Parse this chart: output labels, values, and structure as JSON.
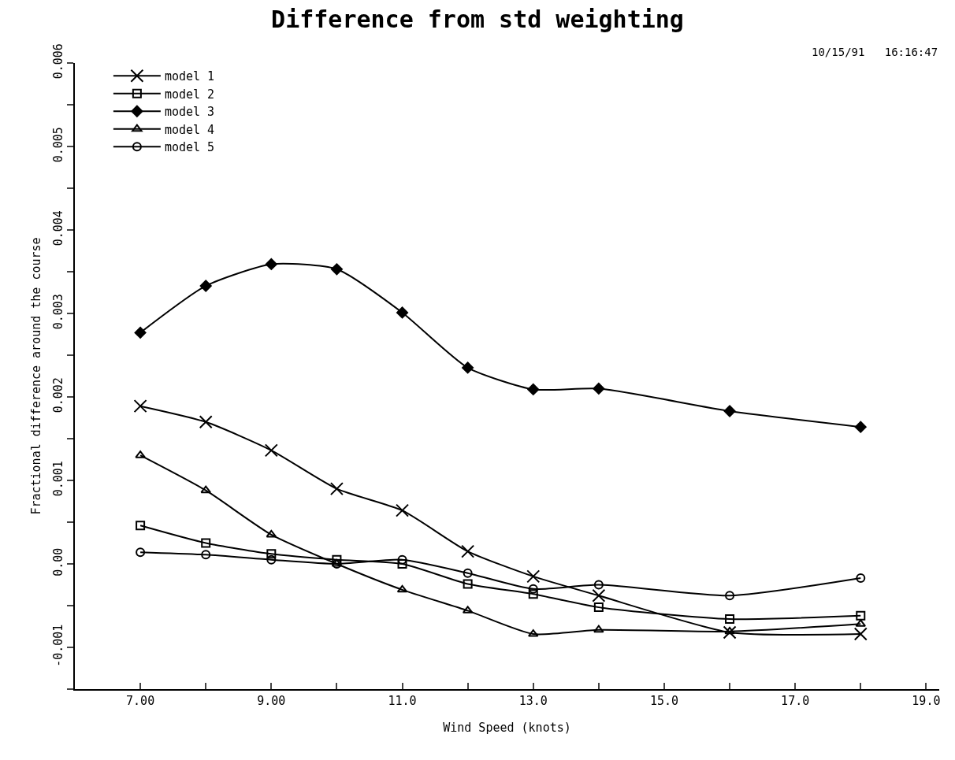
{
  "chart_data": {
    "type": "line",
    "title": "Difference from std weighting",
    "xlabel": "Wind Speed (knots)",
    "ylabel": "Fractional difference around the course",
    "annotations": [
      "10/15/91   16:16:47"
    ],
    "x": [
      7,
      8,
      9,
      10,
      11,
      12,
      13,
      14,
      16,
      18
    ],
    "series": [
      {
        "name": "model 1",
        "color": "#000000",
        "marker": "cross",
        "values": [
          0.00189,
          0.0017,
          0.00136,
          0.0009,
          0.00064,
          0.00015,
          -0.00015,
          -0.00038,
          -0.00082,
          -0.00084
        ]
      },
      {
        "name": "model 2",
        "color": "#000000",
        "marker": "square",
        "values": [
          0.00046,
          0.00025,
          0.00012,
          5e-05,
          0,
          -0.00024,
          -0.00036,
          -0.00052,
          -0.00066,
          -0.00062
        ]
      },
      {
        "name": "model 3",
        "color": "#000000",
        "marker": "diamond",
        "values": [
          0.00277,
          0.00333,
          0.00359,
          0.00353,
          0.00301,
          0.00235,
          0.00209,
          0.0021,
          0.00183,
          0.00164
        ]
      },
      {
        "name": "model 4",
        "color": "#000000",
        "marker": "triangle",
        "values": [
          0.0013,
          0.00088,
          0.00035,
          0,
          -0.00031,
          -0.00056,
          -0.00084,
          -0.00079,
          -0.00081,
          -0.00072
        ]
      },
      {
        "name": "model 5",
        "color": "#000000",
        "marker": "circle",
        "values": [
          0.00014,
          0.00011,
          5e-05,
          0,
          5e-05,
          -0.00011,
          -0.0003,
          -0.00025,
          -0.00038,
          -0.00017
        ]
      }
    ],
    "xlim": [
      6,
      19.2
    ],
    "xticks": [
      {
        "value": 7,
        "label": "7.00"
      },
      {
        "value": 8,
        "label": null
      },
      {
        "value": 9,
        "label": "9.00"
      },
      {
        "value": 10,
        "label": null
      },
      {
        "value": 11,
        "label": "11.0"
      },
      {
        "value": 12,
        "label": null
      },
      {
        "value": 13,
        "label": "13.0"
      },
      {
        "value": 14,
        "label": null
      },
      {
        "value": 15,
        "label": "15.0"
      },
      {
        "value": 16,
        "label": null
      },
      {
        "value": 17,
        "label": "17.0"
      },
      {
        "value": 18,
        "label": null
      },
      {
        "value": 19,
        "label": "19.0"
      }
    ],
    "ylim": [
      -0.0015,
      0.006
    ],
    "yticks": [
      {
        "value": -0.0015,
        "label": null
      },
      {
        "value": -0.001,
        "label": "-0.001"
      },
      {
        "value": -0.0005,
        "label": null
      },
      {
        "value": 0,
        "label": "0.00"
      },
      {
        "value": 0.0005,
        "label": null
      },
      {
        "value": 0.001,
        "label": "0.001"
      },
      {
        "value": 0.0015,
        "label": null
      },
      {
        "value": 0.002,
        "label": "0.002"
      },
      {
        "value": 0.0025,
        "label": null
      },
      {
        "value": 0.003,
        "label": "0.003"
      },
      {
        "value": 0.0035,
        "label": null
      },
      {
        "value": 0.004,
        "label": "0.004"
      },
      {
        "value": 0.0045,
        "label": null
      },
      {
        "value": 0.005,
        "label": "0.005"
      },
      {
        "value": 0.0055,
        "label": null
      },
      {
        "value": 0.006,
        "label": "0.006"
      }
    ],
    "legend": "top left",
    "line_style": "solid"
  }
}
